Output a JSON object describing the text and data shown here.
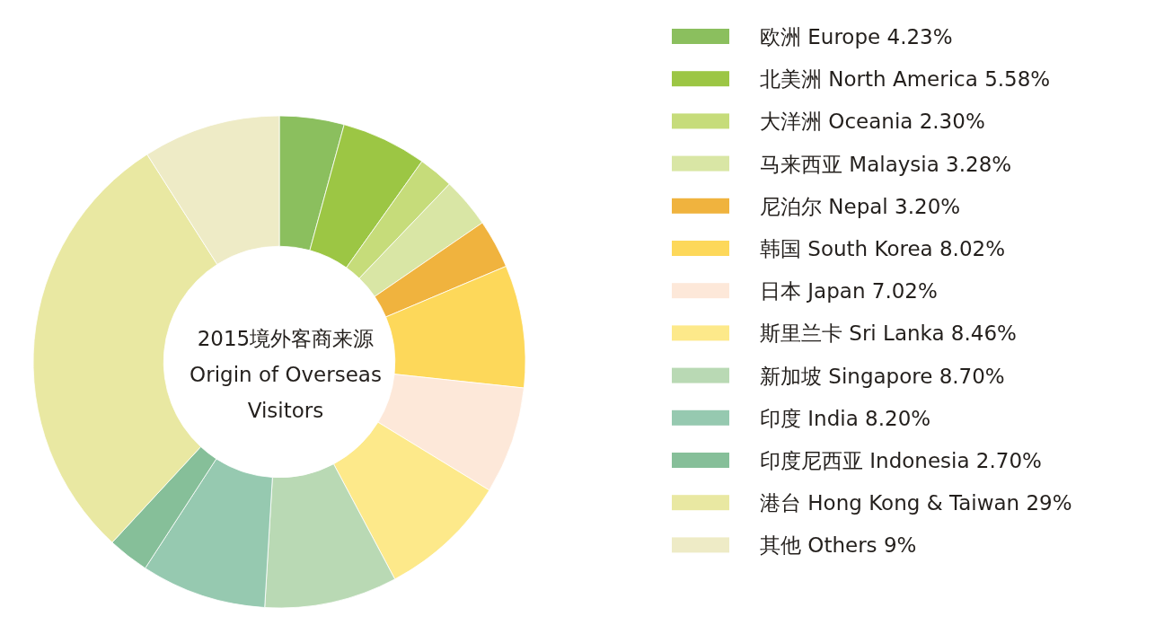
{
  "chart_data": {
    "type": "donut",
    "title": "2015境外客商来源",
    "subtitle": "Origin of Overseas Visitors",
    "categories": [
      "欧洲 Europe 4.23%",
      "北美洲 North America 5.58%",
      "大洋洲 Oceania 2.30%",
      "马来西亚 Malaysia 3.28%",
      "尼泊尔 Nepal 3.20%",
      "韩国 South Korea 8.02%",
      "日本 Japan 7.02%",
      "斯里兰卡 Sri Lanka 8.46%",
      "新加坡 Singapore 8.70%",
      "印度 India 8.20%",
      "印度尼西亚 Indonesia 2.70%",
      "港台 Hong Kong & Taiwan 29%",
      "其他 Others 9%"
    ],
    "values": [
      4.23,
      5.58,
      2.3,
      3.28,
      3.2,
      8.02,
      7.02,
      8.46,
      8.7,
      8.2,
      2.7,
      29,
      9
    ],
    "colors": [
      "#8bbf5e",
      "#9cc644",
      "#c6dc7a",
      "#d9e6a5",
      "#f0b33e",
      "#fdd85a",
      "#fde8d9",
      "#fde98a",
      "#b9d9b4",
      "#96c9b0",
      "#86bf99",
      "#e9e8a2",
      "#eeebc6"
    ],
    "legend": "right"
  }
}
